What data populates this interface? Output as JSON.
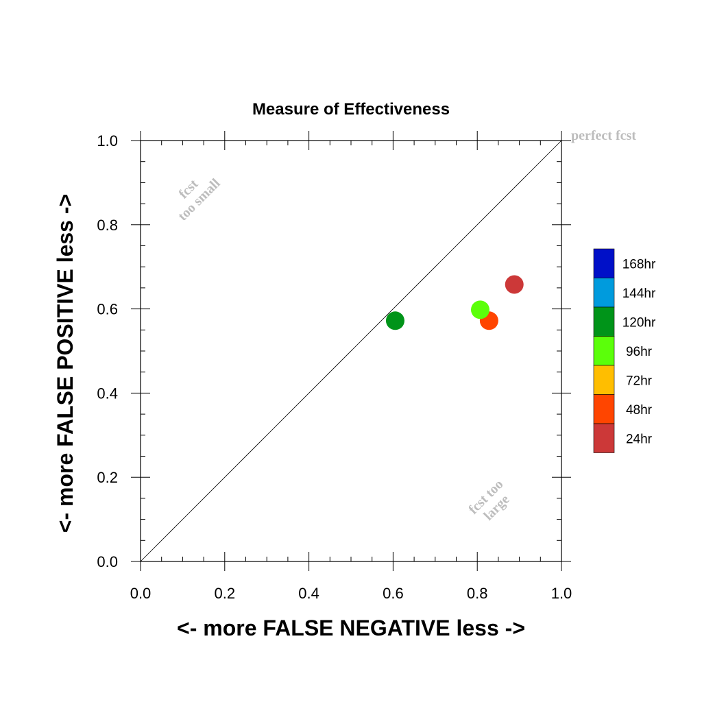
{
  "chart_data": {
    "type": "scatter",
    "title": "Measure of Effectiveness",
    "xlabel": "<- more   FALSE NEGATIVE   less ->",
    "ylabel": "<- more   FALSE POSITIVE   less ->",
    "xlim": [
      0,
      1
    ],
    "ylim": [
      0,
      1
    ],
    "x_ticks": [
      "0.0",
      "0.2",
      "0.4",
      "0.6",
      "0.8",
      "1.0"
    ],
    "y_ticks": [
      "0.0",
      "0.2",
      "0.4",
      "0.6",
      "0.8",
      "1.0"
    ],
    "grid": false,
    "reference_line": "diagonal y = x",
    "annotations": {
      "perfect": "perfect fcst",
      "too_small_1": "fcst",
      "too_small_2": "too small",
      "too_large_1": "fcst too",
      "too_large_2": "large"
    },
    "legend_position": "right",
    "legend": [
      {
        "label": "168hr",
        "color": "#0010c8"
      },
      {
        "label": "144hr",
        "color": "#009bdd"
      },
      {
        "label": "120hr",
        "color": "#009419"
      },
      {
        "label": "96hr",
        "color": "#5bff0a"
      },
      {
        "label": "72hr",
        "color": "#ffbe00"
      },
      {
        "label": "48hr",
        "color": "#ff4500"
      },
      {
        "label": "24hr",
        "color": "#cc3838"
      }
    ],
    "points": [
      {
        "series": "120hr",
        "x": 0.605,
        "y": 0.572,
        "color": "#009419"
      },
      {
        "series": "48hr",
        "x": 0.828,
        "y": 0.572,
        "color": "#ff4500"
      },
      {
        "series": "96hr",
        "x": 0.807,
        "y": 0.598,
        "color": "#5bff0a"
      },
      {
        "series": "24hr",
        "x": 0.888,
        "y": 0.658,
        "color": "#cc3838"
      }
    ]
  }
}
